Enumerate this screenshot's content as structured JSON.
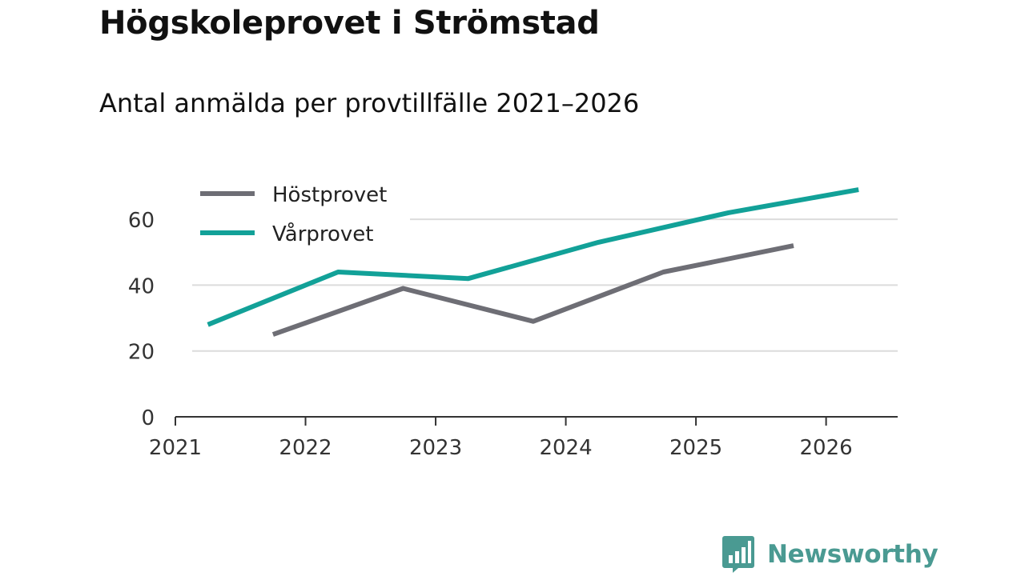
{
  "chart_data": {
    "type": "line",
    "title": "Högskoleprovet i Strömstad",
    "subtitle": "Antal anmälda per provtillfälle 2021–2026",
    "xlabel": "",
    "ylabel": "",
    "xlim": [
      2021,
      2026.55
    ],
    "ylim": [
      0,
      70
    ],
    "xticks": [
      2021,
      2022,
      2023,
      2024,
      2025,
      2026
    ],
    "yticks": [
      0,
      20,
      40,
      60
    ],
    "grid": true,
    "legend_position": "top-left",
    "series": [
      {
        "name": "Höstprovet",
        "color": "#6e6e75",
        "x": [
          2021.75,
          2022.75,
          2023.75,
          2024.75,
          2025.75
        ],
        "values": [
          25,
          39,
          29,
          44,
          52
        ]
      },
      {
        "name": "Vårprovet",
        "color": "#12a198",
        "x": [
          2021.25,
          2022.25,
          2023.25,
          2024.25,
          2025.25,
          2026.25
        ],
        "values": [
          28,
          44,
          42,
          53,
          62,
          69
        ]
      }
    ]
  },
  "brand": {
    "name": "Newsworthy",
    "icon": "bar-chart-speech-bubble-icon",
    "color": "#4a9a92"
  }
}
